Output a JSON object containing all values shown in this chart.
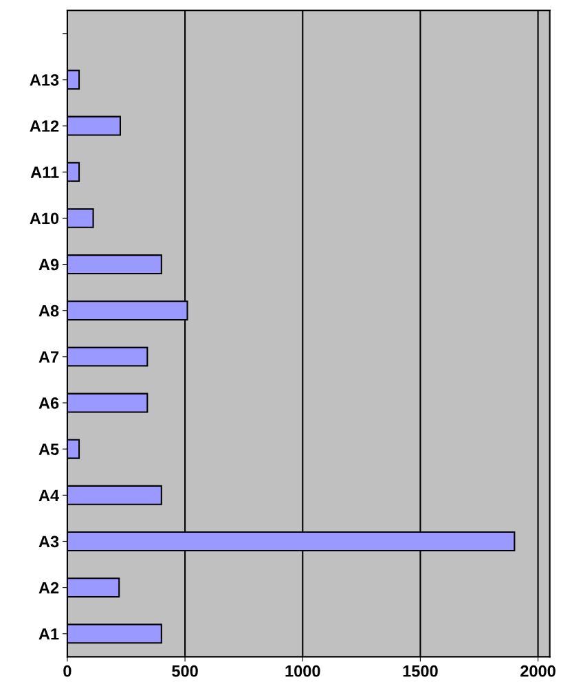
{
  "chart_data": {
    "type": "bar",
    "orientation": "horizontal",
    "categories": [
      null,
      "A13",
      "A12",
      "A11",
      "A10",
      "A9",
      "A8",
      "A7",
      "A6",
      "A5",
      "A4",
      "A3",
      "A2",
      "A1"
    ],
    "values": [
      null,
      50,
      225,
      50,
      110,
      400,
      510,
      340,
      340,
      50,
      400,
      1900,
      220,
      400
    ],
    "color": "#9999ff",
    "xlim": [
      0,
      2050
    ],
    "xticks": [
      0,
      500,
      1000,
      1500,
      2000
    ],
    "grid": "x",
    "legend": false
  }
}
